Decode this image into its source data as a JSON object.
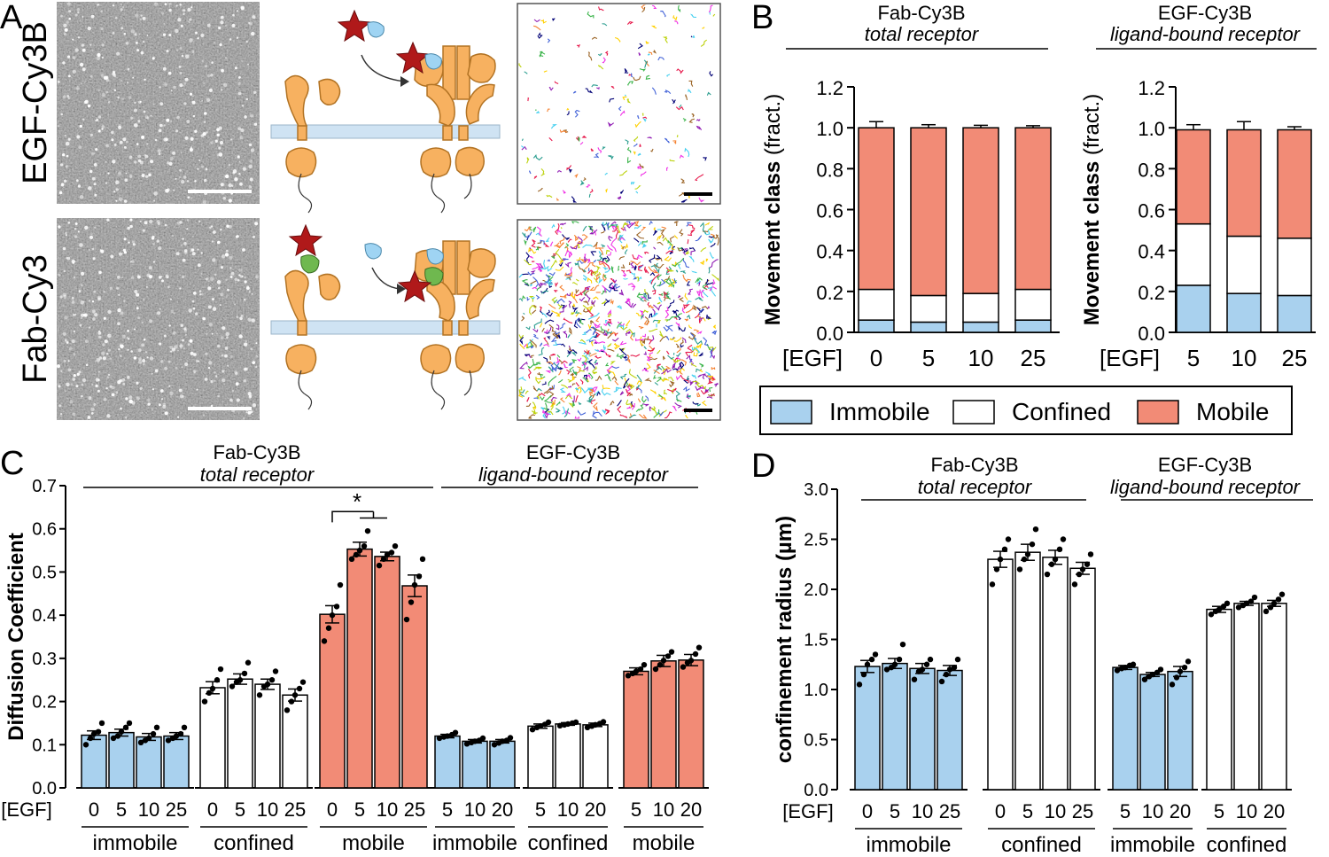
{
  "panel_labels": [
    "A",
    "B",
    "C",
    "D"
  ],
  "colors": {
    "immobile": "#a9d1ee",
    "confined": "#ffffff",
    "mobile": "#f28b76",
    "membrane": "#cfe3f3",
    "receptor": "#f7b160",
    "star": "#b0191a",
    "ligand": "#9fd4f3",
    "fab": "#6fb84f"
  },
  "panel_a": {
    "row_labels": [
      "EGF-Cy3B",
      "Fab-Cy3"
    ],
    "micrographs": [
      "micrograph-egf",
      "micrograph-fab"
    ],
    "tracks": [
      "tracks-egf-sparse",
      "tracks-fab-dense"
    ]
  },
  "chart_data": [
    {
      "id": "B-left",
      "type": "bar",
      "header": "Fab-Cy3B",
      "header_italic": "total receptor",
      "xlabel_prefix": "[EGF]",
      "categories": [
        "0",
        "5",
        "10",
        "25"
      ],
      "ylabel": "Movement class",
      "ylabel_suffix": "(fract.)",
      "ylim": [
        0,
        1.2
      ],
      "yticks": [
        "0.0",
        "0.2",
        "0.4",
        "0.6",
        "0.8",
        "1.0",
        "1.2"
      ],
      "stacked": true,
      "series": [
        {
          "name": "Immobile",
          "values": [
            0.06,
            0.05,
            0.05,
            0.06
          ],
          "err": [
            0.015,
            0.01,
            0.01,
            0.012
          ]
        },
        {
          "name": "Confined",
          "values": [
            0.15,
            0.13,
            0.14,
            0.15
          ],
          "err": [
            0.015,
            0.01,
            0.01,
            0.012
          ]
        },
        {
          "name": "Mobile",
          "values": [
            0.79,
            0.82,
            0.81,
            0.79
          ],
          "err": [
            0.03,
            0.015,
            0.012,
            0.01
          ]
        }
      ]
    },
    {
      "id": "B-right",
      "type": "bar",
      "header": "EGF-Cy3B",
      "header_italic": "ligand-bound receptor",
      "xlabel_prefix": "[EGF]",
      "categories": [
        "5",
        "10",
        "25"
      ],
      "ylabel": "Movement class",
      "ylabel_suffix": "(fract.)",
      "ylim": [
        0,
        1.2
      ],
      "yticks": [
        "0.0",
        "0.2",
        "0.4",
        "0.6",
        "0.8",
        "1.0",
        "1.2"
      ],
      "stacked": true,
      "series": [
        {
          "name": "Immobile",
          "values": [
            0.23,
            0.19,
            0.18
          ],
          "err": [
            0.035,
            0.04,
            0.025
          ]
        },
        {
          "name": "Confined",
          "values": [
            0.3,
            0.28,
            0.28
          ],
          "err": [
            0.02,
            0.01,
            0.012
          ]
        },
        {
          "name": "Mobile",
          "values": [
            0.46,
            0.52,
            0.53
          ],
          "err": [
            0.025,
            0.04,
            0.015
          ]
        }
      ]
    },
    {
      "id": "C",
      "type": "bar",
      "headers": [
        {
          "text": "Fab-Cy3B",
          "italic": "total receptor"
        },
        {
          "text": "EGF-Cy3B",
          "italic": "ligand-bound receptor"
        }
      ],
      "ylabel": "Diffusion Coefficient",
      "ylim": [
        0,
        0.7
      ],
      "yticks": [
        "0.0",
        "0.1",
        "0.2",
        "0.3",
        "0.4",
        "0.5",
        "0.6",
        "0.7"
      ],
      "xlabel_prefix": "[EGF]",
      "significance": "*",
      "groups": [
        {
          "label": "immobile",
          "cls": "immobile",
          "categories": [
            "0",
            "5",
            "10",
            "25"
          ],
          "values": [
            0.122,
            0.128,
            0.118,
            0.12
          ],
          "err": [
            0.01,
            0.008,
            0.008,
            0.008
          ],
          "points": [
            [
              0.1,
              0.115,
              0.125,
              0.13,
              0.15
            ],
            [
              0.115,
              0.12,
              0.13,
              0.14,
              0.15
            ],
            [
              0.105,
              0.11,
              0.115,
              0.125,
              0.14
            ],
            [
              0.11,
              0.115,
              0.12,
              0.125,
              0.14
            ]
          ]
        },
        {
          "label": "confined",
          "cls": "confined",
          "categories": [
            "0",
            "5",
            "10",
            "25"
          ],
          "values": [
            0.232,
            0.252,
            0.24,
            0.215
          ],
          "err": [
            0.014,
            0.012,
            0.012,
            0.014
          ],
          "points": [
            [
              0.2,
              0.22,
              0.23,
              0.25,
              0.275
            ],
            [
              0.235,
              0.245,
              0.25,
              0.265,
              0.29
            ],
            [
              0.215,
              0.235,
              0.24,
              0.25,
              0.27
            ],
            [
              0.18,
              0.2,
              0.215,
              0.23,
              0.245
            ]
          ]
        },
        {
          "label": "mobile",
          "cls": "mobile",
          "categories": [
            "0",
            "5",
            "10",
            "25"
          ],
          "values": [
            0.402,
            0.553,
            0.536,
            0.468
          ],
          "err": [
            0.02,
            0.016,
            0.01,
            0.025
          ],
          "points": [
            [
              0.34,
              0.37,
              0.4,
              0.42,
              0.47
            ],
            [
              0.53,
              0.54,
              0.55,
              0.56,
              0.595
            ],
            [
              0.515,
              0.53,
              0.54,
              0.545,
              0.56
            ],
            [
              0.39,
              0.43,
              0.47,
              0.49,
              0.53
            ]
          ]
        },
        {
          "label": "immobile",
          "cls": "immobile",
          "categories": [
            "5",
            "10",
            "20"
          ],
          "values": [
            0.12,
            0.108,
            0.108
          ],
          "err": [
            0.004,
            0.004,
            0.004
          ],
          "points": [
            [
              0.115,
              0.118,
              0.12,
              0.123,
              0.128
            ],
            [
              0.102,
              0.105,
              0.108,
              0.11,
              0.115
            ],
            [
              0.1,
              0.104,
              0.108,
              0.11,
              0.116
            ]
          ]
        },
        {
          "label": "confined",
          "cls": "confined",
          "categories": [
            "5",
            "10",
            "20"
          ],
          "values": [
            0.143,
            0.148,
            0.146
          ],
          "err": [
            0.005,
            0.003,
            0.004
          ],
          "points": [
            [
              0.135,
              0.14,
              0.143,
              0.147,
              0.152
            ],
            [
              0.144,
              0.146,
              0.148,
              0.15,
              0.152
            ],
            [
              0.14,
              0.143,
              0.146,
              0.149,
              0.153
            ]
          ]
        },
        {
          "label": "mobile",
          "cls": "mobile",
          "categories": [
            "5",
            "10",
            "20"
          ],
          "values": [
            0.27,
            0.294,
            0.296
          ],
          "err": [
            0.008,
            0.013,
            0.013
          ],
          "points": [
            [
              0.26,
              0.265,
              0.27,
              0.275,
              0.285
            ],
            [
              0.275,
              0.285,
              0.295,
              0.305,
              0.315
            ],
            [
              0.28,
              0.29,
              0.295,
              0.31,
              0.325
            ]
          ]
        }
      ]
    },
    {
      "id": "D",
      "type": "bar",
      "headers": [
        {
          "text": "Fab-Cy3B",
          "italic": "total receptor"
        },
        {
          "text": "EGF-Cy3B",
          "italic": "ligand-bound receptor"
        }
      ],
      "ylabel": "confinement radius (µm)",
      "ylim": [
        0,
        3.0
      ],
      "yticks": [
        "0.0",
        "0.5",
        "1.0",
        "1.5",
        "2.0",
        "2.5",
        "3.0"
      ],
      "xlabel_prefix": "[EGF]",
      "groups": [
        {
          "label": "immobile",
          "cls": "immobile",
          "categories": [
            "0",
            "5",
            "10",
            "25"
          ],
          "values": [
            1.23,
            1.26,
            1.21,
            1.19
          ],
          "err": [
            0.06,
            0.05,
            0.05,
            0.05
          ],
          "points": [
            [
              1.05,
              1.15,
              1.25,
              1.3,
              1.35
            ],
            [
              1.2,
              1.22,
              1.25,
              1.3,
              1.45
            ],
            [
              1.1,
              1.18,
              1.2,
              1.25,
              1.3
            ],
            [
              1.08,
              1.15,
              1.2,
              1.22,
              1.3
            ]
          ]
        },
        {
          "label": "confined",
          "cls": "confined",
          "categories": [
            "0",
            "5",
            "10",
            "25"
          ],
          "values": [
            2.3,
            2.37,
            2.32,
            2.21
          ],
          "err": [
            0.08,
            0.08,
            0.07,
            0.06
          ],
          "points": [
            [
              2.05,
              2.2,
              2.3,
              2.4,
              2.5
            ],
            [
              2.2,
              2.3,
              2.35,
              2.45,
              2.6
            ],
            [
              2.15,
              2.25,
              2.3,
              2.4,
              2.5
            ],
            [
              2.05,
              2.15,
              2.2,
              2.25,
              2.35
            ]
          ]
        },
        {
          "label": "immobile",
          "cls": "immobile",
          "categories": [
            "5",
            "10",
            "20"
          ],
          "values": [
            1.22,
            1.15,
            1.18
          ],
          "err": [
            0.02,
            0.02,
            0.05
          ],
          "points": [
            [
              1.19,
              1.21,
              1.22,
              1.24,
              1.25
            ],
            [
              1.1,
              1.13,
              1.15,
              1.17,
              1.2
            ],
            [
              1.05,
              1.12,
              1.18,
              1.22,
              1.28
            ]
          ]
        },
        {
          "label": "confined",
          "cls": "confined",
          "categories": [
            "5",
            "10",
            "20"
          ],
          "values": [
            1.8,
            1.86,
            1.86
          ],
          "err": [
            0.03,
            0.02,
            0.03
          ],
          "points": [
            [
              1.75,
              1.78,
              1.8,
              1.83,
              1.86
            ],
            [
              1.82,
              1.84,
              1.86,
              1.88,
              1.92
            ],
            [
              1.78,
              1.82,
              1.86,
              1.9,
              1.95
            ]
          ]
        }
      ]
    }
  ]
}
